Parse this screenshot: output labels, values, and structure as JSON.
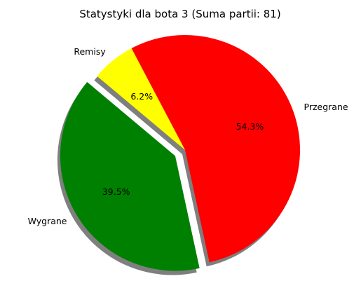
{
  "chart_data": {
    "type": "pie",
    "title": "Statystyki dla bota 3 (Suma partii: 81)",
    "total": 81,
    "startangle_deg": 140,
    "shadow": true,
    "slices": [
      {
        "label": "Wygrane",
        "value": 32,
        "percent_label": "39.5%",
        "color": "#008000",
        "explode": 0.1
      },
      {
        "label": "Przegrane",
        "value": 44,
        "percent_label": "54.3%",
        "color": "#ff0000",
        "explode": 0
      },
      {
        "label": "Remisy",
        "value": 5,
        "percent_label": "6.2%",
        "color": "#ffff00",
        "explode": 0
      }
    ]
  }
}
